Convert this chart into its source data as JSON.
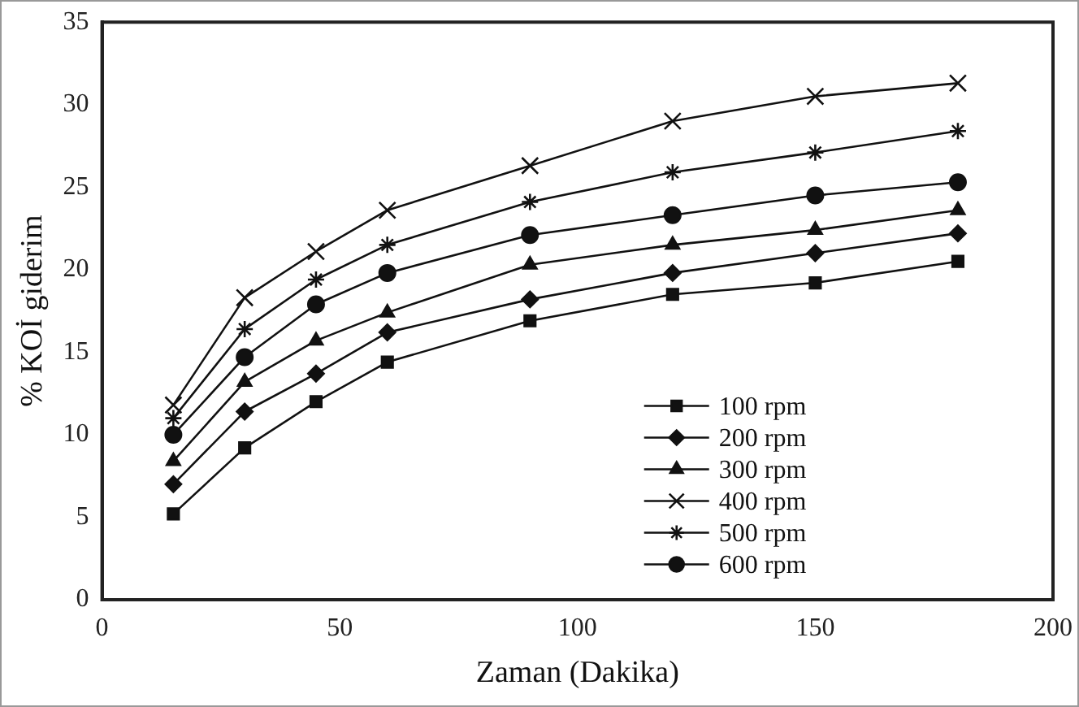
{
  "chart_data": {
    "type": "line",
    "xlabel": "Zaman (Dakika)",
    "ylabel": "% KOİ giderim",
    "x": [
      15,
      30,
      45,
      60,
      90,
      120,
      150,
      180
    ],
    "xlim": [
      0,
      200
    ],
    "xticks": [
      0,
      50,
      100,
      150,
      200
    ],
    "ylim": [
      0,
      35
    ],
    "yticks": [
      0,
      5,
      10,
      15,
      20,
      25,
      30,
      35
    ],
    "grid": false,
    "legend": "bottom right",
    "line_style": "solid",
    "series": [
      {
        "name": "100 rpm",
        "color": "#111111",
        "marker": "square",
        "values": [
          5.2,
          9.2,
          12,
          14.4,
          16.9,
          18.5,
          19.2,
          20.5
        ]
      },
      {
        "name": "200 rpm",
        "color": "#111111",
        "marker": "diamond",
        "values": [
          7,
          11.4,
          13.7,
          16.2,
          18.2,
          19.8,
          21,
          22.2
        ]
      },
      {
        "name": "300 rpm",
        "color": "#111111",
        "marker": "triangle",
        "values": [
          8.4,
          13.2,
          15.7,
          17.4,
          20.3,
          21.5,
          22.4,
          23.6
        ]
      },
      {
        "name": "400 rpm",
        "color": "#111111",
        "marker": "cross",
        "values": [
          11.8,
          18.3,
          21.1,
          23.6,
          26.3,
          29,
          30.5,
          31.3
        ]
      },
      {
        "name": "500 rpm",
        "color": "#111111",
        "marker": "cross",
        "values": [
          11,
          16.4,
          19.4,
          21.5,
          24.1,
          25.9,
          27.1,
          28.4
        ]
      },
      {
        "name": "600 rpm",
        "color": "#111111",
        "marker": "circle",
        "values": [
          10,
          14.7,
          17.9,
          19.8,
          22.1,
          23.3,
          24.5,
          25.3
        ]
      }
    ]
  }
}
